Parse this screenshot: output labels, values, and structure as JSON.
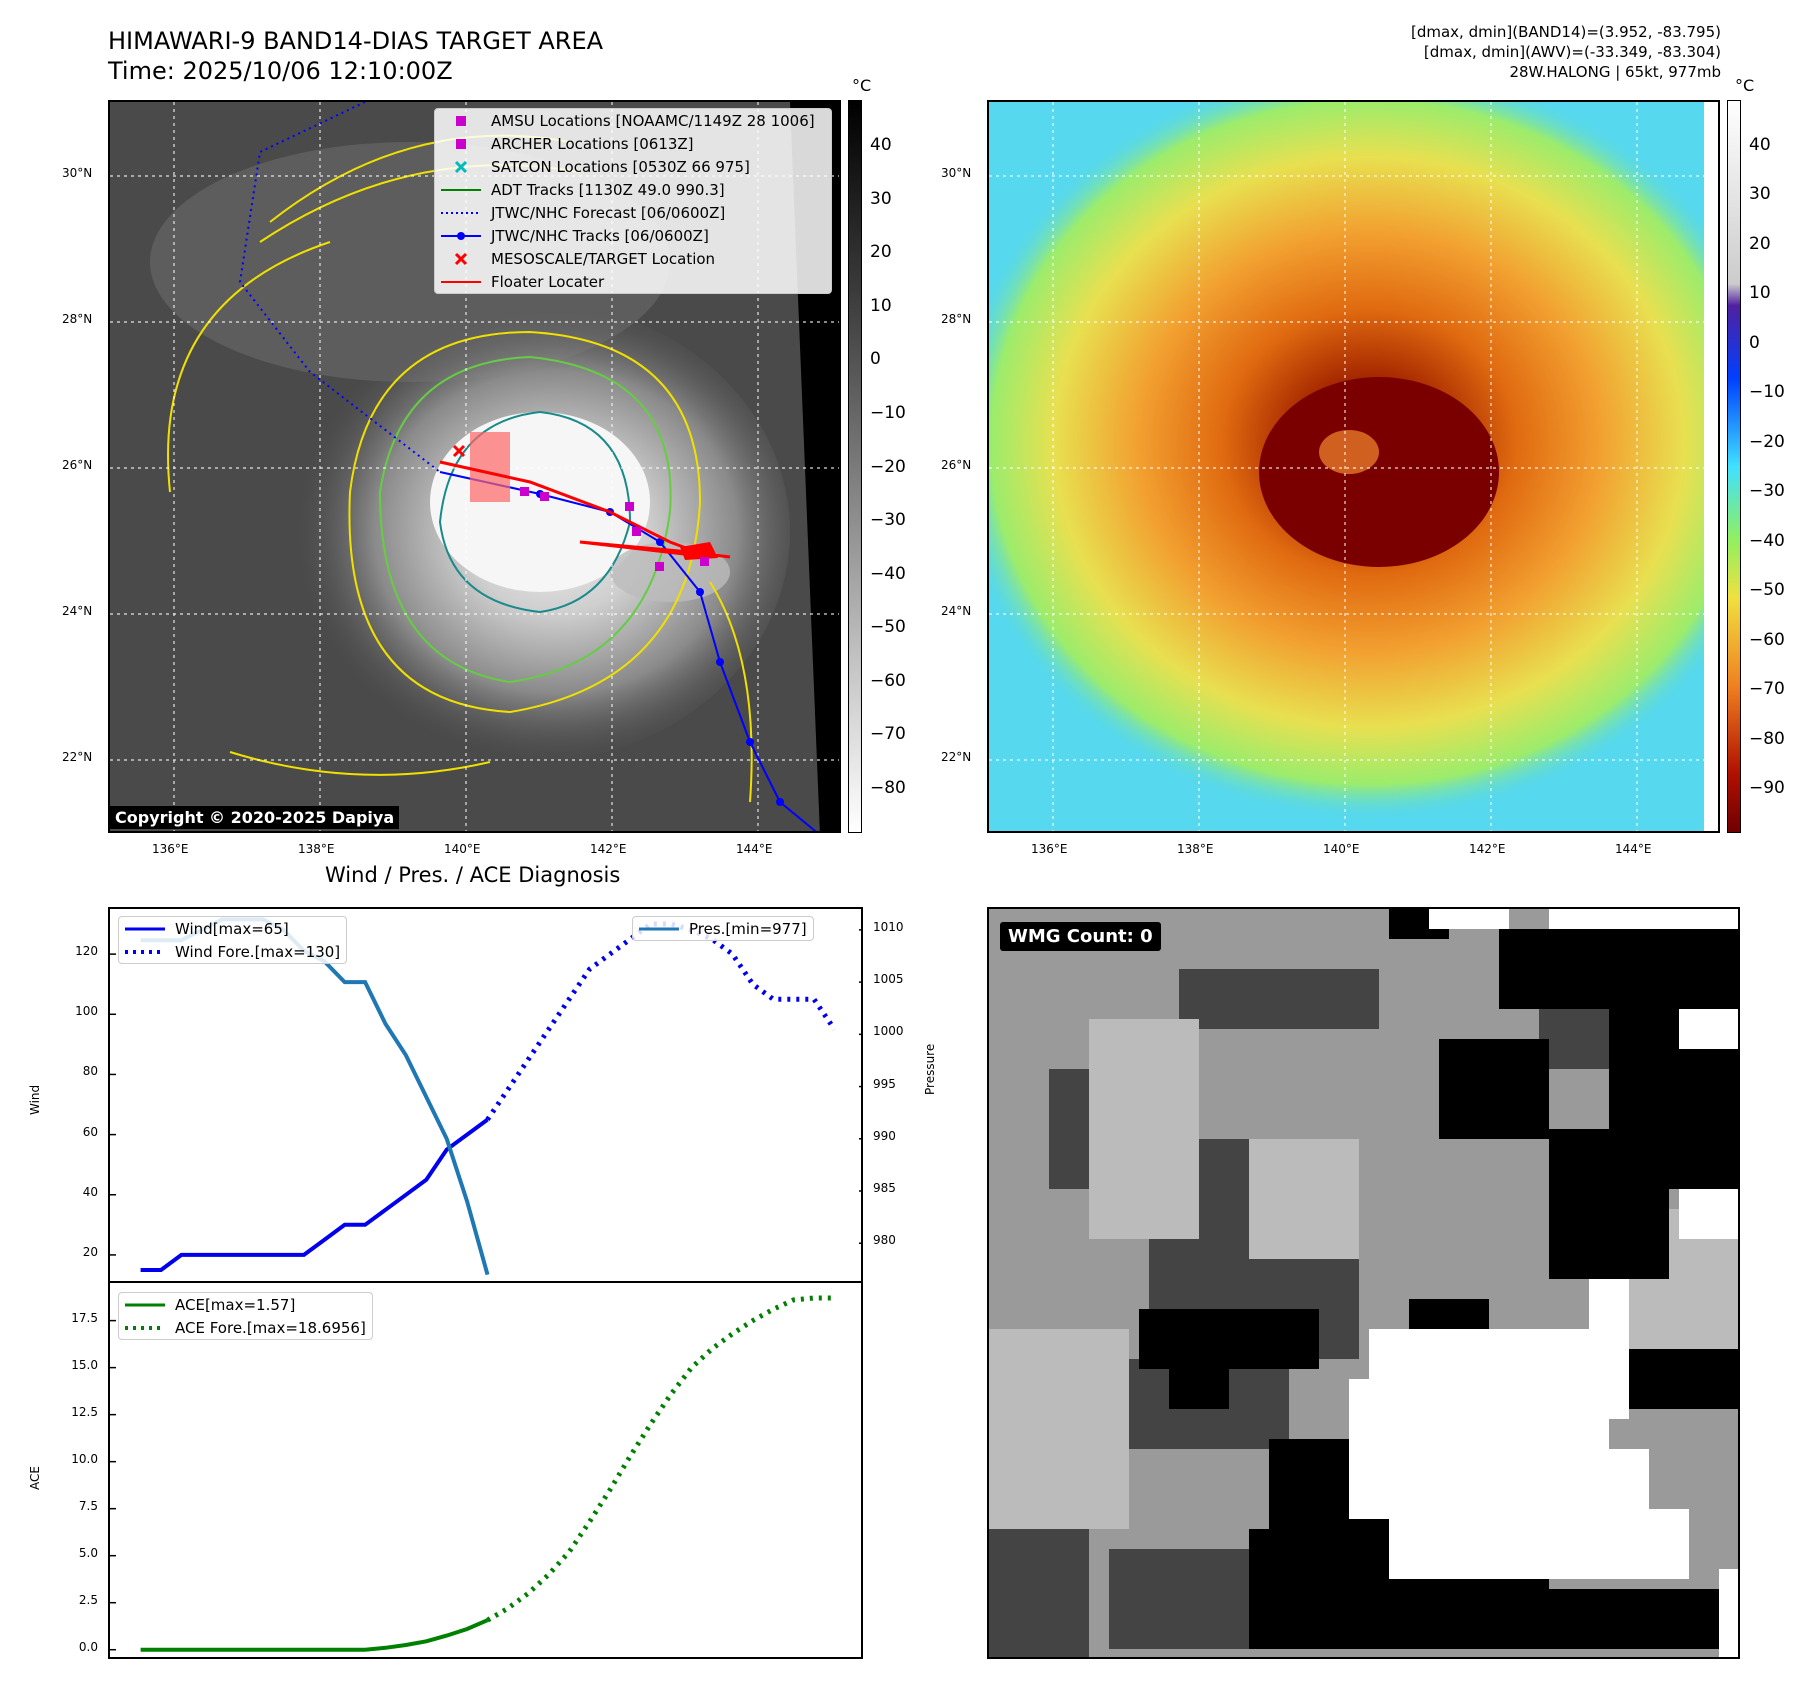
{
  "title_line1": "HIMAWARI-9 BAND14-DIAS TARGET AREA",
  "title_line2": "Time: 2025/10/06 12:10:00Z",
  "info_line1": "[dmax, dmin](BAND14)=(3.952, -83.795)",
  "info_line2": "[dmax, dmin](AWV)=(-33.349, -83.304)",
  "info_line3": "28W.HALONG | 65kt, 977mb",
  "copyright": "Copyright © 2020-2025 Dapiya",
  "lat_labels": [
    "30°N",
    "28°N",
    "26°N",
    "24°N",
    "22°N"
  ],
  "lon_labels": [
    "136°E",
    "138°E",
    "140°E",
    "142°E",
    "144°E"
  ],
  "colorbar_unit": "°C",
  "ir_colorbar_ticks": [
    "40",
    "30",
    "20",
    "10",
    "0",
    "−10",
    "−20",
    "−30",
    "−40",
    "−50",
    "−60",
    "−70",
    "−80"
  ],
  "awv_colorbar_ticks": [
    "40",
    "30",
    "20",
    "10",
    "0",
    "−10",
    "−20",
    "−30",
    "−40",
    "−50",
    "−60",
    "−70",
    "−80",
    "−90"
  ],
  "legend": [
    {
      "label": "AMSU Locations [NOAAMC/1149Z 28 1006]",
      "color": "#cc00cc",
      "kind": "square"
    },
    {
      "label": "ARCHER Locations [0613Z]",
      "color": "#cc00cc",
      "kind": "square"
    },
    {
      "label": "SATCON Locations [0530Z 66 975]",
      "color": "#00bbbb",
      "kind": "x"
    },
    {
      "label": "ADT Tracks [1130Z 49.0 990.3]",
      "color": "#008000",
      "kind": "line"
    },
    {
      "label": "JTWC/NHC Forecast [06/0600Z]",
      "color": "#0000ff",
      "kind": "dotted"
    },
    {
      "label": "JTWC/NHC Tracks [06/0600Z]",
      "color": "#0000ff",
      "kind": "line-dot"
    },
    {
      "label": "MESOSCALE/TARGET Location",
      "color": "#ff0000",
      "kind": "x"
    },
    {
      "label": "Floater Locater",
      "color": "#ff0000",
      "kind": "line"
    }
  ],
  "diagnosis_title": "Wind / Pres. / ACE Diagnosis",
  "wmg_label": "WMG Count: 0",
  "chart_data": [
    {
      "type": "line",
      "title": "Wind / Pres. / ACE Diagnosis",
      "xlabel": "",
      "ylabel": "Wind",
      "y2label": "Pressure",
      "ylim": [
        10,
        135
      ],
      "y2lim": [
        976,
        1012
      ],
      "yticks": [
        20,
        40,
        60,
        80,
        100,
        120
      ],
      "y2ticks": [
        980,
        985,
        990,
        995,
        1000,
        1005,
        1010
      ],
      "series": [
        {
          "name": "Wind[max=65]",
          "axis": "left",
          "color": "#0000ee",
          "style": "solid",
          "x": [
            0,
            1,
            2,
            3,
            4,
            5,
            6,
            7,
            8,
            9,
            10,
            11,
            12,
            13,
            14,
            15,
            16,
            17
          ],
          "y": [
            15,
            15,
            20,
            20,
            20,
            20,
            20,
            20,
            20,
            25,
            30,
            30,
            35,
            40,
            45,
            55,
            60,
            65
          ]
        },
        {
          "name": "Wind Fore.[max=130]",
          "axis": "left",
          "color": "#0000ee",
          "style": "dotted",
          "x": [
            17,
            18,
            19,
            20,
            21,
            22,
            23,
            24,
            25,
            26,
            27,
            28,
            29,
            30,
            31,
            32,
            33,
            34
          ],
          "y": [
            65,
            75,
            85,
            95,
            105,
            115,
            120,
            125,
            130,
            130,
            128,
            125,
            120,
            110,
            105,
            105,
            105,
            95
          ]
        },
        {
          "name": "Pres.[min=977]",
          "axis": "right",
          "color": "#1f77b4",
          "style": "solid",
          "x": [
            0,
            1,
            2,
            3,
            4,
            5,
            6,
            7,
            8,
            9,
            10,
            11,
            12,
            13,
            14,
            15,
            16,
            17
          ],
          "y": [
            1009,
            1009,
            1009,
            1010,
            1011,
            1011,
            1011,
            1010,
            1008,
            1007,
            1005,
            1005,
            1001,
            998,
            994,
            990,
            984,
            977
          ]
        }
      ],
      "legend_right": "Pres.[min=977]"
    },
    {
      "type": "line",
      "xlabel": "",
      "ylabel": "ACE",
      "ylim": [
        -0.6,
        19.5
      ],
      "yticks": [
        0.0,
        2.5,
        5.0,
        7.5,
        10.0,
        12.5,
        15.0,
        17.5
      ],
      "ytick_labels": [
        "0.0",
        "2.5",
        "5.0",
        "7.5",
        "10.0",
        "12.5",
        "15.0",
        "17.5"
      ],
      "series": [
        {
          "name": "ACE[max=1.57]",
          "color": "#008000",
          "style": "solid",
          "x": [
            0,
            2,
            4,
            6,
            8,
            10,
            11,
            12,
            13,
            14,
            15,
            16,
            17
          ],
          "y": [
            0,
            0,
            0,
            0,
            0,
            0,
            0,
            0.1,
            0.25,
            0.45,
            0.75,
            1.1,
            1.57
          ]
        },
        {
          "name": "ACE Fore.[max=18.6956]",
          "color": "#008000",
          "style": "dotted",
          "x": [
            17,
            18,
            19,
            20,
            21,
            22,
            23,
            24,
            25,
            26,
            27,
            28,
            29,
            30,
            31,
            32,
            33,
            34
          ],
          "y": [
            1.57,
            2.2,
            3.0,
            4.0,
            5.2,
            6.8,
            8.5,
            10.3,
            12.0,
            13.6,
            15.0,
            16.0,
            16.8,
            17.5,
            18.1,
            18.6,
            18.7,
            18.7
          ]
        }
      ]
    }
  ]
}
